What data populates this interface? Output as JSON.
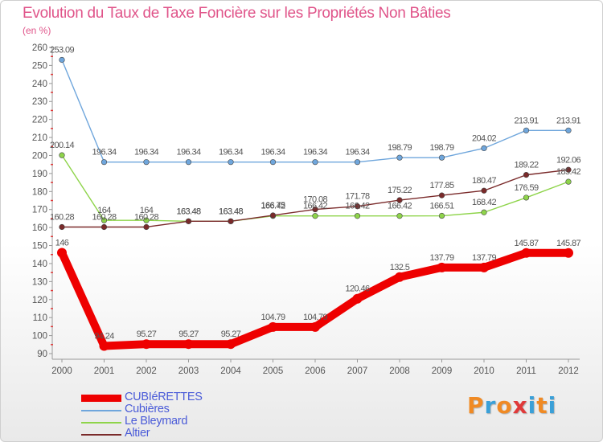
{
  "header": {
    "title": "Evolution du Taux de Taxe Foncière sur les Propriétés Non Bâties",
    "unit": "(en %)"
  },
  "logo": {
    "text": "Proxiti",
    "colors": [
      "#f08a24",
      "#3aa0d8",
      "#f08a24",
      "#e03a3a",
      "#3aa0d8",
      "#f08a24",
      "#3aa0d8"
    ]
  },
  "chart_data": {
    "type": "line",
    "title": "Evolution du Taux de Taxe Foncière sur les Propriétés Non Bâties",
    "ylabel": "(en %)",
    "xlabel": "",
    "categories": [
      "2000",
      "2001",
      "2002",
      "2003",
      "2004",
      "2005",
      "2006",
      "2007",
      "2008",
      "2009",
      "2010",
      "2011",
      "2012"
    ],
    "ylim": [
      90,
      260
    ],
    "yticks": [
      90,
      100,
      110,
      120,
      130,
      140,
      150,
      160,
      170,
      180,
      190,
      200,
      210,
      220,
      230,
      240,
      250,
      260
    ],
    "grid": false,
    "legend_position": "bottom-left",
    "series": [
      {
        "name": "CUBIéRETTES",
        "color": "#ee0000",
        "style": "thick",
        "values": [
          146,
          94.24,
          95.27,
          95.27,
          95.27,
          104.79,
          104.79,
          120.46,
          132.5,
          137.79,
          137.79,
          145.87,
          145.87
        ],
        "labels": [
          "146",
          "94.24",
          "95.27",
          "95.27",
          "95.27",
          "104.79",
          "104.79",
          "120.46",
          "132.5",
          "137.79",
          "137.79",
          "145.87",
          "145.87"
        ]
      },
      {
        "name": "Cubières",
        "color": "#6fa6dc",
        "style": "thin",
        "values": [
          253.09,
          196.34,
          196.34,
          196.34,
          196.34,
          196.34,
          196.34,
          196.34,
          198.79,
          198.79,
          204.02,
          213.91,
          213.91
        ],
        "labels": [
          "253.09",
          "196.34",
          "196.34",
          "196.34",
          "196.34",
          "196.34",
          "196.34",
          "196.34",
          "198.79",
          "198.79",
          "204.02",
          "213.91",
          "213.91"
        ]
      },
      {
        "name": "Le Bleymard",
        "color": "#8ed44a",
        "style": "thin",
        "values": [
          200.14,
          164,
          164,
          163.48,
          163.48,
          166.42,
          166.42,
          166.42,
          166.42,
          166.51,
          168.42,
          176.59,
          185.42
        ],
        "labels": [
          "200.14",
          "164",
          "164",
          "163.48",
          "163.48",
          "166.42",
          "166.42",
          "166.42",
          "166.42",
          "166.51",
          "168.42",
          "176.59",
          "185.42"
        ]
      },
      {
        "name": "Altier",
        "color": "#7a2a2a",
        "style": "thin",
        "values": [
          160.28,
          160.28,
          160.28,
          163.48,
          163.48,
          166.75,
          170.08,
          171.78,
          175.22,
          177.85,
          180.47,
          189.22,
          192.06
        ],
        "labels": [
          "160.28",
          "160.28",
          "160.28",
          "163.48",
          "163.48",
          "166.75",
          "170.08",
          "171.78",
          "175.22",
          "177.85",
          "180.47",
          "189.22",
          "192.06"
        ]
      }
    ]
  }
}
